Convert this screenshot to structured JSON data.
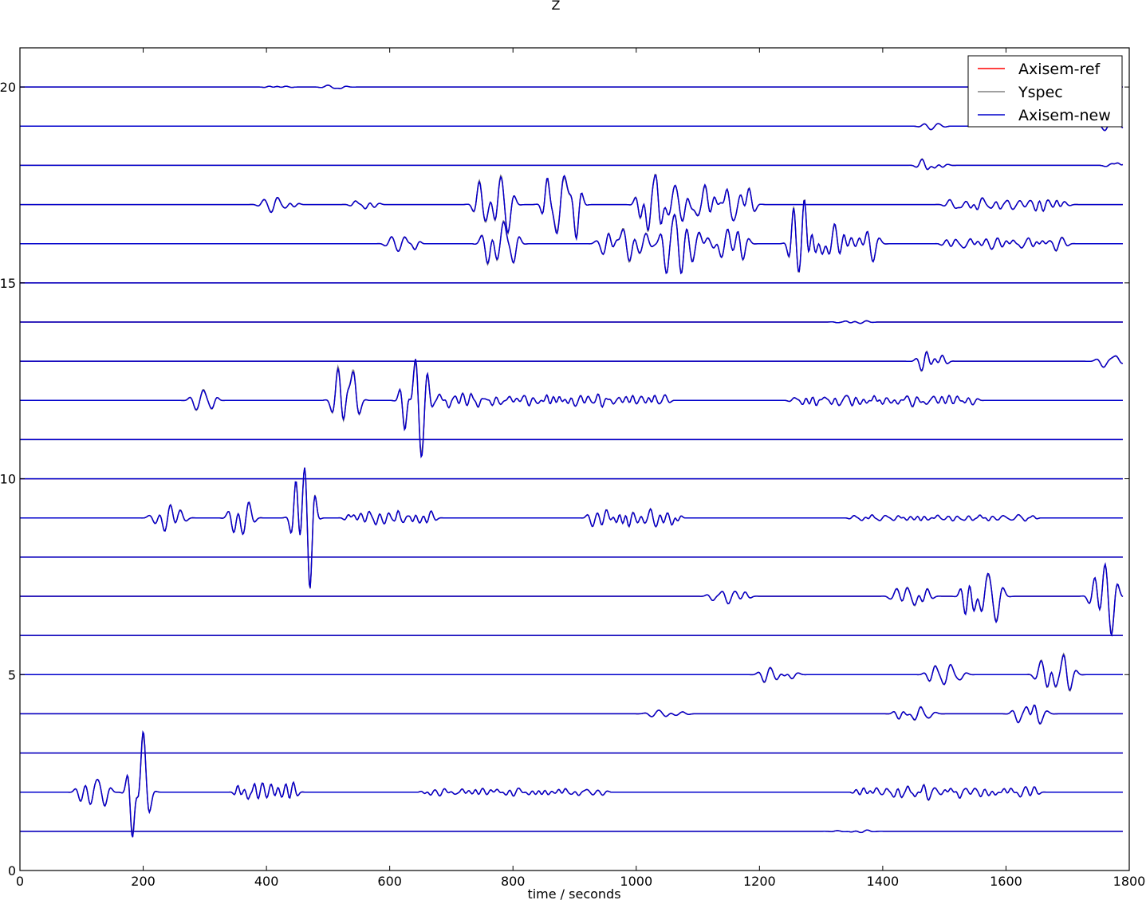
{
  "chart_data": {
    "type": "line",
    "title": "Z",
    "xlabel": "time / seconds",
    "ylabel": "",
    "xlim": [
      0,
      1800
    ],
    "ylim": [
      0,
      21
    ],
    "x_ticks": [
      0,
      200,
      400,
      600,
      800,
      1000,
      1200,
      1400,
      1600,
      1800
    ],
    "y_ticks": [
      0,
      5,
      10,
      15,
      20
    ],
    "grid": false,
    "legend_position": "top-right",
    "series": [
      {
        "name": "Axisem-ref",
        "color": "#ff0000"
      },
      {
        "name": "Yspec",
        "color": "#808080"
      },
      {
        "name": "Axisem-new",
        "color": "#0000cc"
      }
    ],
    "traces": [
      {
        "offset": 20,
        "events": [
          [
            420,
            0.04,
            0.3,
            40
          ],
          [
            510,
            0.06,
            0.2,
            30
          ]
        ]
      },
      {
        "offset": 19,
        "events": [
          [
            1480,
            0.07,
            0.35,
            40
          ],
          [
            1770,
            0.15,
            0.3,
            30
          ]
        ]
      },
      {
        "offset": 18,
        "events": [
          [
            1480,
            0.15,
            0.4,
            50
          ],
          [
            1780,
            0.15,
            0.3,
            30
          ]
        ]
      },
      {
        "offset": 17,
        "events": [
          [
            420,
            0.15,
            0.6,
            60
          ],
          [
            560,
            0.12,
            0.6,
            40
          ],
          [
            770,
            0.6,
            0.35,
            60
          ],
          [
            880,
            0.8,
            0.5,
            60
          ],
          [
            1020,
            1.1,
            0.65,
            40
          ],
          [
            1100,
            0.5,
            0.5,
            180
          ],
          [
            1600,
            0.15,
            0.8,
            200
          ]
        ]
      },
      {
        "offset": 16,
        "events": [
          [
            620,
            0.15,
            0.5,
            50
          ],
          [
            780,
            0.6,
            0.35,
            50
          ],
          [
            980,
            0.4,
            0.3,
            80
          ],
          [
            1070,
            0.9,
            0.55,
            50
          ],
          [
            1140,
            0.35,
            0.5,
            80
          ],
          [
            1270,
            1.0,
            0.5,
            40
          ],
          [
            1330,
            0.45,
            0.5,
            120
          ],
          [
            1600,
            0.15,
            0.8,
            200
          ]
        ]
      },
      {
        "offset": 15,
        "events": []
      },
      {
        "offset": 14,
        "events": [
          [
            1350,
            0.03,
            0.4,
            60
          ]
        ]
      },
      {
        "offset": 13,
        "events": [
          [
            1480,
            0.2,
            0.4,
            50
          ],
          [
            1770,
            0.2,
            0.35,
            30
          ]
        ]
      },
      {
        "offset": 12,
        "events": [
          [
            300,
            0.3,
            0.4,
            40
          ],
          [
            530,
            1.0,
            0.4,
            40
          ],
          [
            640,
            1.35,
            0.5,
            40
          ],
          [
            700,
            0.2,
            1.0,
            120
          ],
          [
            900,
            0.15,
            1.0,
            300
          ],
          [
            1400,
            0.15,
            1.0,
            300
          ]
        ]
      },
      {
        "offset": 11,
        "events": []
      },
      {
        "offset": 10,
        "events": []
      },
      {
        "offset": 9,
        "events": [
          [
            240,
            0.3,
            0.4,
            50
          ],
          [
            360,
            0.5,
            0.4,
            40
          ],
          [
            460,
            1.6,
            0.5,
            35
          ],
          [
            600,
            0.18,
            1.0,
            150
          ],
          [
            1000,
            0.25,
            1.0,
            150
          ],
          [
            1500,
            0.08,
            1.0,
            300
          ]
        ]
      },
      {
        "offset": 8,
        "events": []
      },
      {
        "offset": 7,
        "events": [
          [
            1150,
            0.15,
            0.4,
            60
          ],
          [
            1450,
            0.3,
            0.4,
            60
          ],
          [
            1560,
            0.6,
            0.45,
            60
          ],
          [
            1760,
            1.0,
            0.4,
            40
          ]
        ]
      },
      {
        "offset": 6,
        "events": []
      },
      {
        "offset": 5,
        "events": [
          [
            1230,
            0.2,
            0.4,
            60
          ],
          [
            1500,
            0.2,
            0.4,
            60
          ],
          [
            1680,
            0.55,
            0.45,
            60
          ]
        ]
      },
      {
        "offset": 4,
        "events": [
          [
            1050,
            0.08,
            0.3,
            60
          ],
          [
            1450,
            0.15,
            0.4,
            60
          ],
          [
            1640,
            0.35,
            0.4,
            50
          ]
        ]
      },
      {
        "offset": 3,
        "events": []
      },
      {
        "offset": 2,
        "events": [
          [
            120,
            0.3,
            0.4,
            50
          ],
          [
            195,
            1.3,
            0.5,
            30
          ],
          [
            400,
            0.3,
            1.0,
            100
          ],
          [
            800,
            0.1,
            1.0,
            300
          ],
          [
            1500,
            0.15,
            1.0,
            300
          ]
        ]
      },
      {
        "offset": 1,
        "events": [
          [
            1350,
            0.03,
            0.3,
            60
          ]
        ]
      }
    ]
  }
}
